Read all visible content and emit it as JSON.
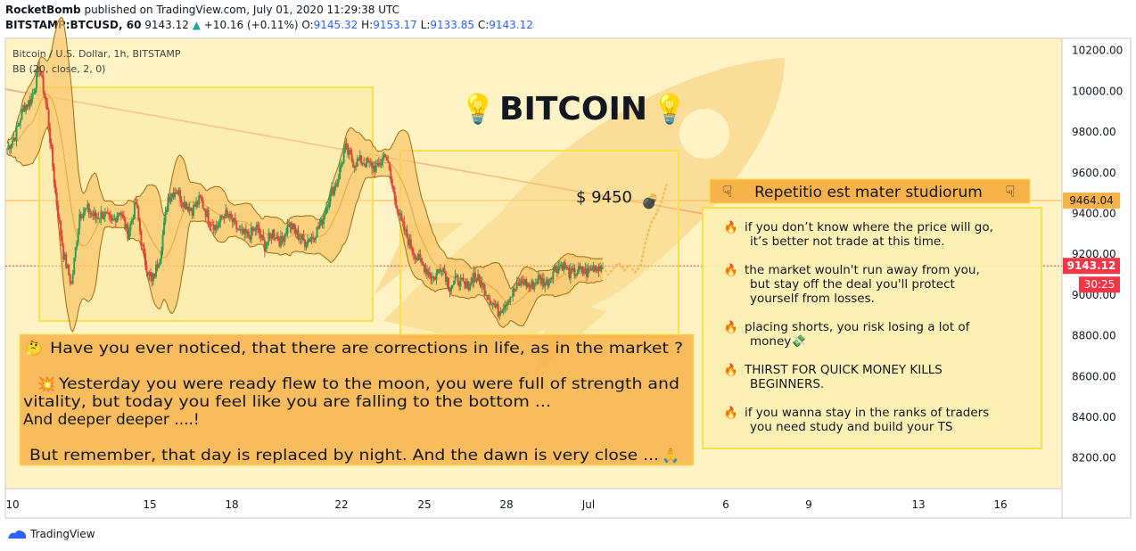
{
  "header": {
    "author": "RocketBomb",
    "published": "published on TradingView.com, July 01, 2020 11:29:38 UTC",
    "symbol": "BITSTAMP:BTCUSD, 60",
    "last": "9143.12",
    "change_arrow": "▲",
    "change": "+10.16 (+0.11%)",
    "o_label": "O:",
    "o": "9145.32",
    "h_label": "H:",
    "h": "9153.17",
    "l_label": "L:",
    "l": "9133.85",
    "c_label": "C:",
    "c": "9143.12"
  },
  "legend": {
    "title": "Bitcoin / U.S. Dollar, 1h, BITSTAMP",
    "indicator": "BB (20, close, 2, 0)"
  },
  "annotations": {
    "title": "BITCOIN",
    "title_icon": "💡",
    "price_label": "$ 9450",
    "bomb_icon": "💣",
    "motto": "Repetitio est mater studiorum",
    "motto_icon": "☟",
    "story": [
      "Have you ever noticed, that there are corrections in life, as in the market ?",
      "Yesterday you were ready flew to the moon, you were full of strength and",
      "vitality, but today you feel like you are falling to the bottom ...",
      "And deeper deeper ....!",
      "But remember, that day is replaced by night. And the dawn is very close ..."
    ],
    "story_icons": {
      "thinking": "🤔",
      "collision": "💥",
      "pray": "🙏"
    },
    "tips": [
      [
        "if you don’t know where the price will go,",
        "it’s better not trade at this time."
      ],
      [
        "the market wouln't run away from you,",
        "but stay off the deal  you'll protect",
        "yourself from losses."
      ],
      [
        "placing shorts, you risk losing a lot of",
        "money💸"
      ],
      [
        "THIRST FOR QUICK MONEY  KILLS",
        "BEGINNERS."
      ],
      [
        "if you wanna stay in the ranks of traders",
        "you need study and build your TS"
      ]
    ],
    "tip_icon": "🔥"
  },
  "price_tags": {
    "level": "9464.04",
    "last": "9143.12",
    "countdown": "30:25"
  },
  "footer": {
    "brand": "TradingView"
  },
  "colors": {
    "background": "#fdf3c4",
    "box_border": "#f7e04a",
    "orange_box": "#f8b24a",
    "band_fill": "#f9c66b",
    "band_line": "#a16a10",
    "up_candle": "#2e9e56",
    "down_candle": "#e0433a",
    "last_price": "#f23645"
  },
  "chart_data": {
    "type": "candlestick",
    "x_ticks": [
      "10",
      "15",
      "18",
      "22",
      "25",
      "28",
      "Jul",
      "6",
      "9",
      "13",
      "16"
    ],
    "y_ticks": [
      8200,
      8400,
      8600,
      8800,
      9000,
      9200,
      9400,
      9600,
      9800,
      10000,
      10200
    ],
    "ylim": [
      8050,
      10260
    ],
    "price_path": [
      [
        9720,
        9780,
        9920,
        9960,
        10120,
        9900,
        9500
      ],
      [
        9200,
        9050,
        9400,
        9420,
        9380,
        9400,
        9350
      ],
      [
        9420,
        9300,
        9450,
        9180,
        9060,
        9200,
        9480
      ],
      [
        9520,
        9450,
        9420,
        9470,
        9380,
        9330,
        9400,
        9360
      ],
      [
        9300,
        9290,
        9330,
        9240,
        9310,
        9260,
        9350
      ],
      [
        9300,
        9260,
        9290,
        9350,
        9480,
        9560,
        9720,
        9650,
        9660,
        9640
      ],
      [
        9620,
        9700,
        9500,
        9350,
        9250,
        9180,
        9130,
        9080,
        9150,
        9040
      ],
      [
        9080,
        9030,
        9100,
        9050,
        8980,
        8920,
        8970,
        9020,
        9070,
        9040
      ],
      [
        9080,
        9060,
        9130,
        9150,
        9100,
        9120,
        9110,
        9140,
        9143.12
      ]
    ],
    "projection": [
      9143.12,
      9100,
      9130,
      9160,
      9120,
      9150,
      9110,
      9140,
      9260,
      9350,
      9400,
      9460,
      9550
    ]
  }
}
